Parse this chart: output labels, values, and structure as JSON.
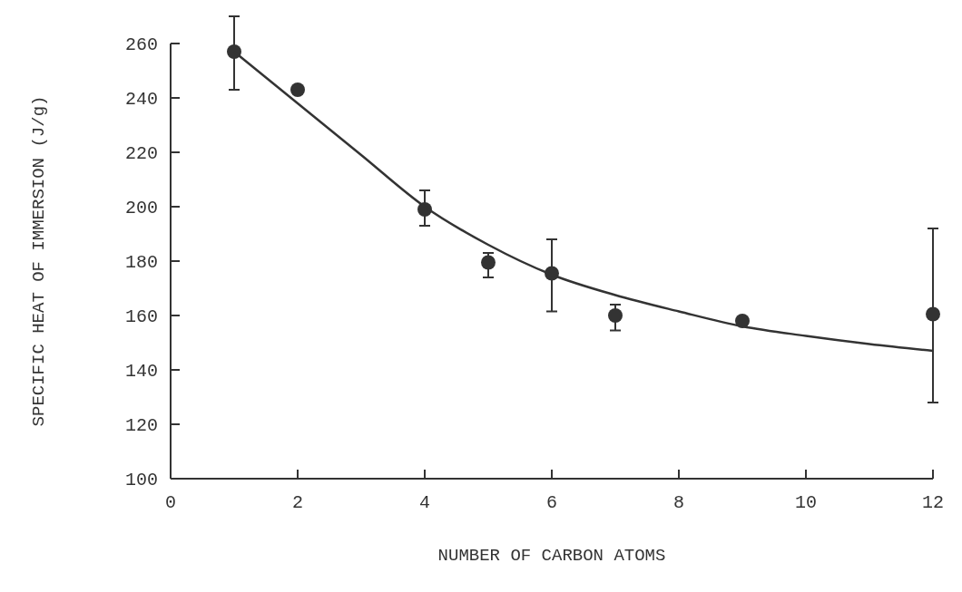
{
  "chart_data": {
    "type": "scatter",
    "xlabel": "NUMBER OF CARBON ATOMS",
    "ylabel": "SPECIFIC HEAT OF IMMERSION (J/g)",
    "xlim": [
      0,
      12
    ],
    "ylim": [
      100,
      260
    ],
    "xticks": [
      0,
      2,
      4,
      6,
      8,
      10,
      12
    ],
    "yticks": [
      100,
      120,
      140,
      160,
      180,
      200,
      220,
      240,
      260
    ],
    "grid": false,
    "series": [
      {
        "marker": "circle",
        "color": "#333333",
        "x": [
          1,
          2,
          4,
          5,
          6,
          7,
          9,
          12
        ],
        "values": [
          257,
          243,
          199,
          179.5,
          175.5,
          160,
          158,
          160.5
        ],
        "errors": [
          [
            243,
            270
          ],
          null,
          [
            193,
            206
          ],
          [
            174,
            183
          ],
          [
            161.5,
            188
          ],
          [
            154.5,
            164
          ],
          null,
          [
            128,
            192
          ]
        ]
      },
      {
        "type": "line",
        "marker": "none",
        "color": "#333333",
        "x": [
          1,
          2,
          3,
          4,
          5,
          6,
          7,
          8,
          9,
          10,
          11,
          12
        ],
        "values": [
          257,
          238,
          219,
          200,
          186,
          175,
          167.5,
          161.5,
          156,
          152.5,
          149.5,
          147
        ]
      }
    ]
  }
}
